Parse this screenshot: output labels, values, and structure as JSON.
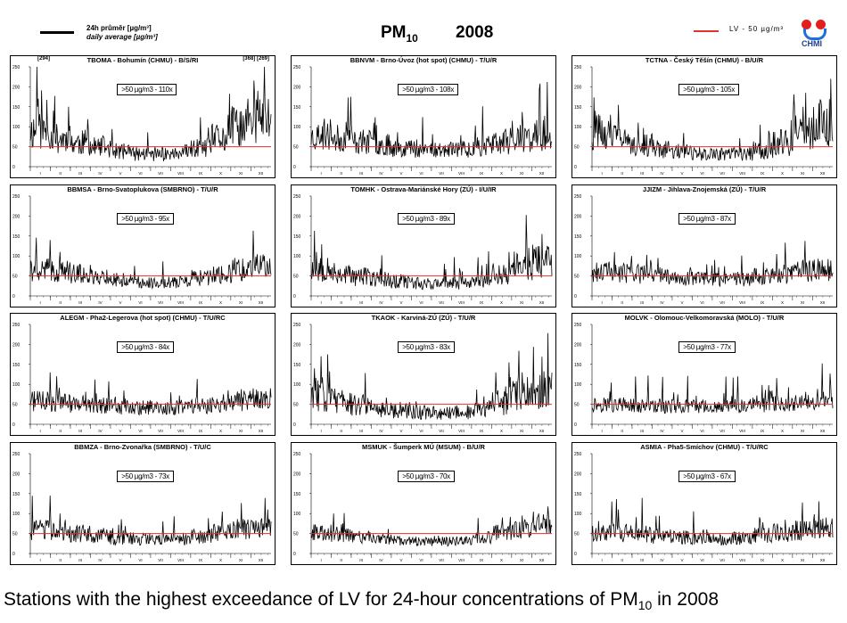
{
  "header": {
    "legend_line1": "24h průměr [µg/m³]",
    "legend_line2": "daily average [µg/m³]",
    "title_main": "PM",
    "title_sub": "10",
    "year": "2008",
    "lv_label": "LV   - 50 µg/m³",
    "logo_text": "CHMI"
  },
  "caption": {
    "text": "Stations with the highest exceedance of LV for 24-hour concentrations of PM",
    "sub": "10",
    "suffix": " in 2008"
  },
  "colors": {
    "series": "#000000",
    "limit": "#e53030"
  },
  "chart_data": [
    {
      "type": "line",
      "title": "TBOMA - Bohumín (CHMU) - B/S/RI",
      "annotation": ">50 µg/m3 - 110x",
      "notes": [
        "[294]",
        "[368] [269]"
      ],
      "ylim": [
        0,
        250
      ],
      "yticks": [
        0,
        50,
        100,
        150,
        200,
        250
      ],
      "xticks": [
        "I",
        "II",
        "III",
        "IV",
        "V",
        "VI",
        "VII",
        "VIII",
        "IX",
        "X",
        "XI",
        "XII"
      ],
      "limit": 50,
      "profile": {
        "seed": 11,
        "base": [
          90,
          70,
          60,
          48,
          38,
          32,
          30,
          32,
          45,
          70,
          100,
          120
        ],
        "noise": 0.55,
        "spikes": [
          [
            10,
            250
          ],
          [
            12,
            170
          ],
          [
            35,
            140
          ],
          [
            58,
            150
          ],
          [
            300,
            130
          ],
          [
            330,
            170
          ],
          [
            345,
            190
          ],
          [
            355,
            250
          ]
        ]
      }
    },
    {
      "type": "line",
      "title": "BBNVM - Brno-Úvoz (hot spot) (CHMU) - T/U/R",
      "annotation": ">50 µg/m3 - 108x",
      "notes": [],
      "ylim": [
        0,
        250
      ],
      "yticks": [
        0,
        50,
        100,
        150,
        200,
        250
      ],
      "xticks": [
        "I",
        "II",
        "III",
        "IV",
        "V",
        "VI",
        "VII",
        "VIII",
        "IX",
        "X",
        "XI",
        "XII"
      ],
      "limit": 50,
      "profile": {
        "seed": 23,
        "base": [
          75,
          70,
          62,
          55,
          48,
          45,
          42,
          45,
          52,
          60,
          70,
          78
        ],
        "noise": 0.5,
        "spikes": [
          [
            20,
            120
          ],
          [
            60,
            175
          ],
          [
            95,
            110
          ],
          [
            305,
            115
          ],
          [
            340,
            100
          ]
        ]
      }
    },
    {
      "type": "line",
      "title": "TCTNA - Český Těšín (CHMU) - B/U/R",
      "annotation": ">50 µg/m3 - 105x",
      "notes": [],
      "ylim": [
        0,
        250
      ],
      "yticks": [
        0,
        50,
        100,
        150,
        200,
        250
      ],
      "xticks": [
        "I",
        "II",
        "III",
        "IV",
        "V",
        "VI",
        "VII",
        "VIII",
        "IX",
        "X",
        "XI",
        "XII"
      ],
      "limit": 50,
      "profile": {
        "seed": 31,
        "base": [
          85,
          70,
          55,
          45,
          38,
          32,
          30,
          32,
          42,
          60,
          85,
          110
        ],
        "noise": 0.55,
        "spikes": [
          [
            5,
            140
          ],
          [
            40,
            155
          ],
          [
            70,
            110
          ],
          [
            320,
            150
          ],
          [
            340,
            120
          ],
          [
            362,
            220
          ]
        ]
      }
    },
    {
      "type": "line",
      "title": "BBMSA - Brno-Svatoplukova (SMBRNO) - T/U/R",
      "annotation": ">50 µg/m3 - 95x",
      "notes": [],
      "ylim": [
        0,
        250
      ],
      "yticks": [
        0,
        50,
        100,
        150,
        200,
        250
      ],
      "xticks": [
        "I",
        "II",
        "III",
        "IV",
        "V",
        "VI",
        "VII",
        "VIII",
        "IX",
        "X",
        "XI",
        "XII"
      ],
      "limit": 50,
      "profile": {
        "seed": 41,
        "base": [
          65,
          62,
          55,
          48,
          40,
          35,
          33,
          35,
          45,
          55,
          65,
          72
        ],
        "noise": 0.45,
        "spikes": [
          [
            30,
            140
          ],
          [
            45,
            110
          ],
          [
            310,
            95
          ],
          [
            355,
            100
          ]
        ]
      }
    },
    {
      "type": "line",
      "title": "TOMHK - Ostrava-Mariánské Hory (ZÚ) - I/U/IR",
      "annotation": ">50 µg/m3 - 89x",
      "notes": [],
      "ylim": [
        0,
        250
      ],
      "yticks": [
        0,
        50,
        100,
        150,
        200,
        250
      ],
      "xticks": [
        "I",
        "II",
        "III",
        "IV",
        "V",
        "VI",
        "VII",
        "VIII",
        "IX",
        "X",
        "XI",
        "XII"
      ],
      "limit": 50,
      "profile": {
        "seed": 53,
        "base": [
          70,
          55,
          48,
          42,
          36,
          32,
          30,
          32,
          40,
          55,
          75,
          90
        ],
        "noise": 0.5,
        "spikes": [
          [
            8,
            110
          ],
          [
            25,
            95
          ],
          [
            300,
            110
          ],
          [
            330,
            120
          ],
          [
            350,
            155
          ]
        ]
      }
    },
    {
      "type": "line",
      "title": "JJIZM - Jihlava-Znojemská (ZÚ) - T/U/R",
      "annotation": ">50 µg/m3 - 87x",
      "notes": [],
      "ylim": [
        0,
        250
      ],
      "yticks": [
        0,
        50,
        100,
        150,
        200,
        250
      ],
      "xticks": [
        "I",
        "II",
        "III",
        "IV",
        "V",
        "VI",
        "VII",
        "VIII",
        "IX",
        "X",
        "XI",
        "XII"
      ],
      "limit": 50,
      "profile": {
        "seed": 61,
        "base": [
          60,
          58,
          55,
          50,
          45,
          42,
          40,
          42,
          48,
          55,
          62,
          65
        ],
        "noise": 0.45,
        "spikes": [
          [
            60,
            100
          ],
          [
            100,
            95
          ],
          [
            280,
            105
          ],
          [
            320,
            90
          ]
        ]
      }
    },
    {
      "type": "line",
      "title": "ALEGM - Pha2-Legerova (hot spot) (CHMU) - T/U/RC",
      "annotation": ">50 µg/m3 - 84x",
      "notes": [],
      "ylim": [
        0,
        250
      ],
      "yticks": [
        0,
        50,
        100,
        150,
        200,
        250
      ],
      "xticks": [
        "I",
        "II",
        "III",
        "IV",
        "V",
        "VI",
        "VII",
        "VIII",
        "IX",
        "X",
        "XI",
        "XII"
      ],
      "limit": 50,
      "profile": {
        "seed": 71,
        "base": [
          58,
          56,
          52,
          48,
          45,
          42,
          40,
          42,
          48,
          52,
          58,
          62
        ],
        "noise": 0.45,
        "spikes": [
          [
            30,
            130
          ],
          [
            40,
            120
          ],
          [
            300,
            85
          ],
          [
            355,
            75
          ]
        ]
      }
    },
    {
      "type": "line",
      "title": "TKAOK - Karviná-ZÚ (ZÚ) - T/U/R",
      "annotation": ">50 µg/m3 - 83x",
      "notes": [],
      "ylim": [
        0,
        250
      ],
      "yticks": [
        0,
        50,
        100,
        150,
        200,
        250
      ],
      "xticks": [
        "I",
        "II",
        "III",
        "IV",
        "V",
        "VI",
        "VII",
        "VIII",
        "IX",
        "X",
        "XI",
        "XII"
      ],
      "limit": 50,
      "profile": {
        "seed": 83,
        "base": [
          75,
          60,
          50,
          42,
          35,
          30,
          28,
          30,
          38,
          55,
          75,
          85
        ],
        "noise": 0.6,
        "spikes": [
          [
            5,
            140
          ],
          [
            15,
            170
          ],
          [
            25,
            175
          ],
          [
            280,
            130
          ],
          [
            300,
            155
          ],
          [
            320,
            130
          ]
        ]
      }
    },
    {
      "type": "line",
      "title": "MOLVK - Olomouc-Velkomoravská (MOLO) - T/U/R",
      "annotation": ">50 µg/m3 - 77x",
      "notes": [],
      "ylim": [
        0,
        250
      ],
      "yticks": [
        0,
        50,
        100,
        150,
        200,
        250
      ],
      "xticks": [
        "I",
        "II",
        "III",
        "IV",
        "V",
        "VI",
        "VII",
        "VIII",
        "IX",
        "X",
        "XI",
        "XII"
      ],
      "limit": 50,
      "profile": {
        "seed": 97,
        "base": [
          50,
          48,
          46,
          45,
          44,
          44,
          44,
          45,
          48,
          52,
          55,
          58
        ],
        "noise": 0.4,
        "spikes": [
          [
            130,
            75
          ],
          [
            200,
            78
          ],
          [
            250,
            72
          ],
          [
            362,
            95
          ]
        ]
      }
    },
    {
      "type": "line",
      "title": "BBMZA - Brno-Zvonařka (SMBRNO) - T/U/C",
      "annotation": ">50 µg/m3 - 73x",
      "notes": [],
      "ylim": [
        0,
        250
      ],
      "yticks": [
        0,
        50,
        100,
        150,
        200,
        250
      ],
      "xticks": [
        "I",
        "II",
        "III",
        "IV",
        "V",
        "VI",
        "VII",
        "VIII",
        "IX",
        "X",
        "XI",
        "XII"
      ],
      "limit": 50,
      "profile": {
        "seed": 103,
        "base": [
          58,
          55,
          50,
          45,
          40,
          36,
          34,
          36,
          44,
          52,
          60,
          65
        ],
        "noise": 0.45,
        "spikes": [
          [
            30,
            145
          ],
          [
            45,
            100
          ],
          [
            330,
            85
          ],
          [
            360,
            110
          ]
        ]
      }
    },
    {
      "type": "line",
      "title": "MSMUK - Šumperk MÚ (MSUM) - B/U/R",
      "annotation": ">50 µg/m3 - 70x",
      "notes": [],
      "ylim": [
        0,
        250
      ],
      "yticks": [
        0,
        50,
        100,
        150,
        200,
        250
      ],
      "xticks": [
        "I",
        "II",
        "III",
        "IV",
        "V",
        "VI",
        "VII",
        "VIII",
        "IX",
        "X",
        "XI",
        "XII"
      ],
      "limit": 50,
      "profile": {
        "seed": 113,
        "base": [
          52,
          48,
          42,
          36,
          32,
          30,
          30,
          32,
          40,
          52,
          62,
          70
        ],
        "noise": 0.4,
        "spikes": [
          [
            290,
            90
          ],
          [
            320,
            95
          ],
          [
            345,
            100
          ],
          [
            362,
            85
          ]
        ]
      }
    },
    {
      "type": "line",
      "title": "ASMIA - Pha5-Smíchov (CHMU) - T/U/RC",
      "annotation": ">50 µg/m3 - 67x",
      "notes": [],
      "ylim": [
        0,
        250
      ],
      "yticks": [
        0,
        50,
        100,
        150,
        200,
        250
      ],
      "xticks": [
        "I",
        "II",
        "III",
        "IV",
        "V",
        "VI",
        "VII",
        "VIII",
        "IX",
        "X",
        "XI",
        "XII"
      ],
      "limit": 50,
      "profile": {
        "seed": 127,
        "base": [
          55,
          52,
          48,
          44,
          40,
          38,
          36,
          38,
          45,
          52,
          58,
          62
        ],
        "noise": 0.45,
        "spikes": [
          [
            30,
            130
          ],
          [
            40,
            110
          ],
          [
            330,
            80
          ],
          [
            355,
            90
          ]
        ]
      }
    }
  ]
}
